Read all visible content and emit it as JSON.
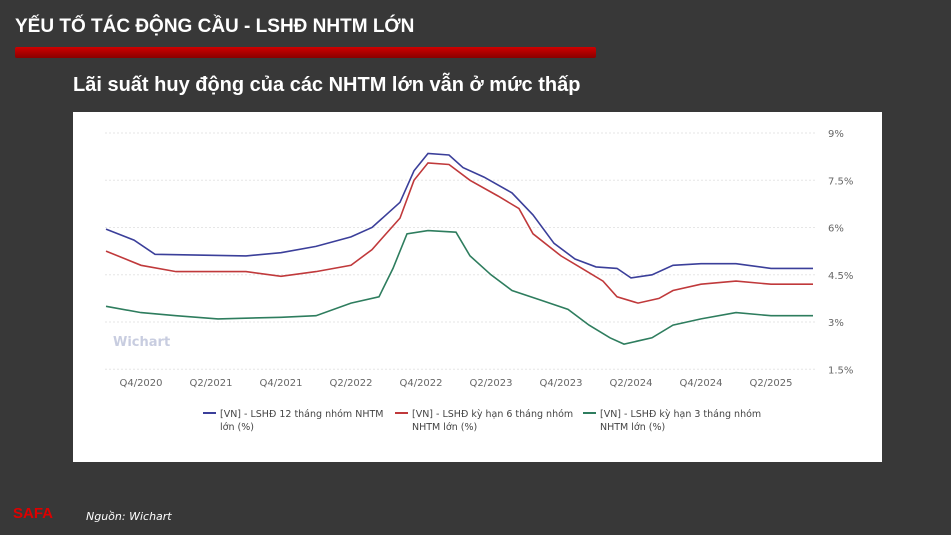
{
  "header": {
    "title": "YẾU TỐ TÁC ĐỘNG CẦU - LSHĐ NHTM LỚN",
    "subtitle": "Lãi suất huy động của các NHTM lớn vẫn ở mức thấp"
  },
  "footer": {
    "source": "Nguồn: Wichart",
    "logo": "SAFA"
  },
  "chart_data": {
    "type": "line",
    "title": "",
    "watermark": "Wichart",
    "ylim": [
      1.5,
      9
    ],
    "y_ticks": [
      "9%",
      "7.5%",
      "6%",
      "4.5%",
      "3%",
      "1.5%"
    ],
    "y_values": [
      9,
      7.5,
      6,
      4.5,
      3,
      1.5
    ],
    "x_ticks": [
      "Q4/2020",
      "Q2/2021",
      "Q4/2021",
      "Q2/2022",
      "Q4/2022",
      "Q2/2023",
      "Q4/2023",
      "Q2/2024",
      "Q4/2024",
      "Q2/2025"
    ],
    "x_tick_years": [
      2020.75,
      2021.25,
      2021.75,
      2022.25,
      2022.75,
      2023.25,
      2023.75,
      2024.25,
      2024.75,
      2025.25
    ],
    "legend_position": "bottom",
    "grid": true,
    "series": [
      {
        "name": "[VN] - LSHĐ 12 tháng nhóm NHTM lớn (%)",
        "color": "#3b3f9a",
        "x": [
          2020.5,
          2020.7,
          2020.85,
          2021.5,
          2021.75,
          2022.0,
          2022.25,
          2022.4,
          2022.6,
          2022.7,
          2022.8,
          2022.95,
          2023.05,
          2023.2,
          2023.4,
          2023.55,
          2023.7,
          2023.85,
          2024.0,
          2024.15,
          2024.25,
          2024.4,
          2024.55,
          2024.75,
          2025.0,
          2025.25,
          2025.55
        ],
        "y": [
          5.95,
          5.6,
          5.15,
          5.1,
          5.2,
          5.4,
          5.7,
          6.0,
          6.8,
          7.8,
          8.35,
          8.3,
          7.9,
          7.6,
          7.1,
          6.4,
          5.5,
          5.0,
          4.75,
          4.7,
          4.4,
          4.5,
          4.8,
          4.85,
          4.85,
          4.7,
          4.7
        ]
      },
      {
        "name": "[VN] - LSHĐ kỳ hạn 6 tháng nhóm NHTM lớn (%)",
        "color": "#c0393b",
        "x": [
          2020.5,
          2020.75,
          2021.0,
          2021.5,
          2021.75,
          2022.0,
          2022.25,
          2022.4,
          2022.6,
          2022.7,
          2022.8,
          2022.95,
          2023.1,
          2023.3,
          2023.45,
          2023.55,
          2023.75,
          2023.9,
          2024.05,
          2024.15,
          2024.3,
          2024.45,
          2024.55,
          2024.75,
          2025.0,
          2025.25,
          2025.55
        ],
        "y": [
          5.25,
          4.8,
          4.6,
          4.6,
          4.45,
          4.6,
          4.8,
          5.3,
          6.3,
          7.5,
          8.05,
          8.0,
          7.5,
          7.0,
          6.6,
          5.8,
          5.1,
          4.7,
          4.3,
          3.8,
          3.6,
          3.75,
          4.0,
          4.2,
          4.3,
          4.2,
          4.2
        ]
      },
      {
        "name": "[VN] - LSHĐ kỳ hạn 3 tháng nhóm NHTM lớn (%)",
        "color": "#2e7d5e",
        "x": [
          2020.5,
          2020.75,
          2021.0,
          2021.3,
          2021.75,
          2022.0,
          2022.25,
          2022.45,
          2022.55,
          2022.65,
          2022.8,
          2023.0,
          2023.1,
          2023.25,
          2023.4,
          2023.6,
          2023.8,
          2023.95,
          2024.1,
          2024.2,
          2024.4,
          2024.55,
          2024.75,
          2025.0,
          2025.25,
          2025.55
        ],
        "y": [
          3.5,
          3.3,
          3.2,
          3.1,
          3.15,
          3.2,
          3.6,
          3.8,
          4.7,
          5.8,
          5.9,
          5.85,
          5.1,
          4.5,
          4.0,
          3.7,
          3.4,
          2.9,
          2.5,
          2.3,
          2.5,
          2.9,
          3.1,
          3.3,
          3.2,
          3.2
        ]
      }
    ],
    "legend_lines": [
      [
        "[VN] - LSHĐ 12 tháng nhóm NHTM",
        "lớn (%)"
      ],
      [
        "[VN] - LSHĐ kỳ hạn 6 tháng nhóm",
        "NHTM lớn (%)"
      ],
      [
        "[VN] - LSHĐ kỳ hạn 3 tháng nhóm",
        "NHTM lớn (%)"
      ]
    ]
  }
}
